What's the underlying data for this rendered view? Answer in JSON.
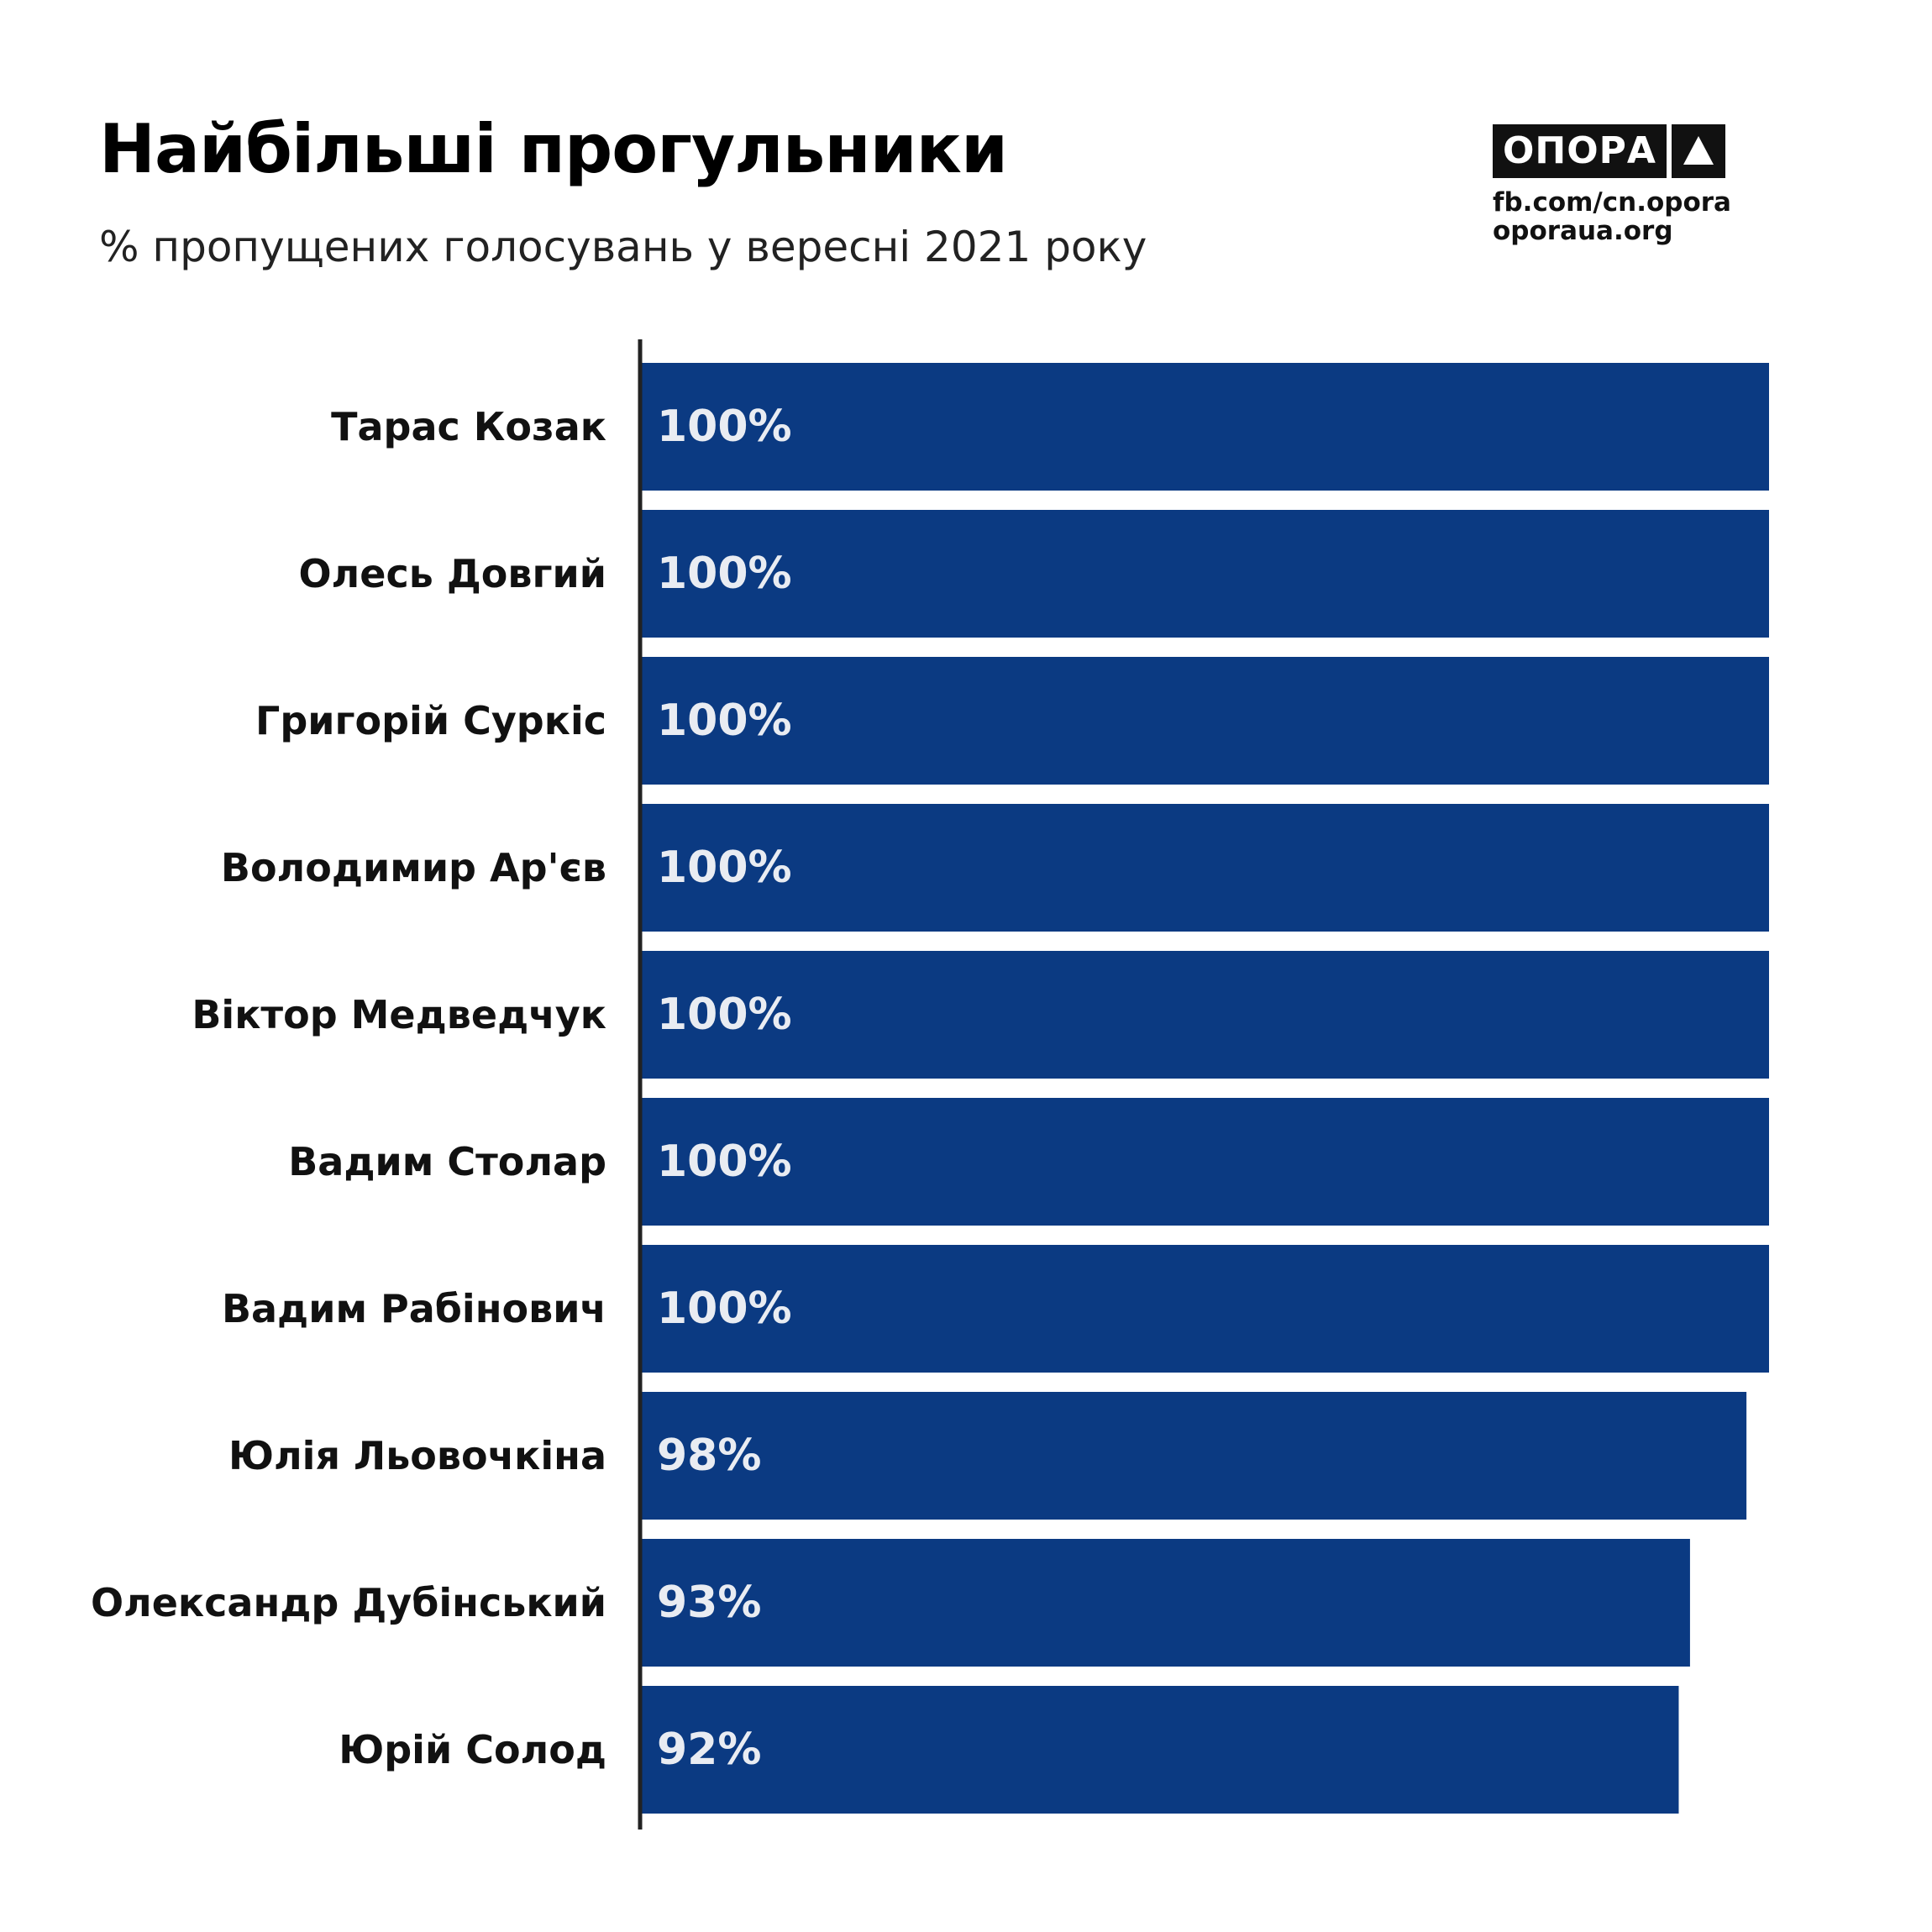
{
  "header": {
    "title": "Найбільші прогульники",
    "subtitle": "% пропущених голосувань у вересні 2021 року"
  },
  "brand": {
    "logo_text": "ОПОРА",
    "logo_mark_icon": "triangle-up-icon",
    "links": [
      "fb.com/cn.opora",
      "oporaua.org"
    ]
  },
  "colors": {
    "bar": "#0b3a82",
    "value_text": "#e9ecf2",
    "label_text": "#111111",
    "axis": "#222222"
  },
  "chart_data": {
    "type": "bar",
    "orientation": "horizontal",
    "title": "Найбільші прогульники",
    "subtitle": "% пропущених голосувань у вересні 2021 року",
    "categories": [
      "Тарас Козак",
      "Олесь Довгий",
      "Григорій Суркіс",
      "Володимир Ар'єв",
      "Віктор Медведчук",
      "Вадим Столар",
      "Вадим Рабінович",
      "Юлія Льовочкіна",
      "Олександр Дубінський",
      "Юрій Солод"
    ],
    "values": [
      100,
      100,
      100,
      100,
      100,
      100,
      100,
      98,
      93,
      92
    ],
    "value_labels": [
      "100%",
      "100%",
      "100%",
      "100%",
      "100%",
      "100%",
      "100%",
      "98%",
      "93%",
      "92%"
    ],
    "xlim": [
      0,
      100
    ],
    "grid": false,
    "legend": "none"
  }
}
